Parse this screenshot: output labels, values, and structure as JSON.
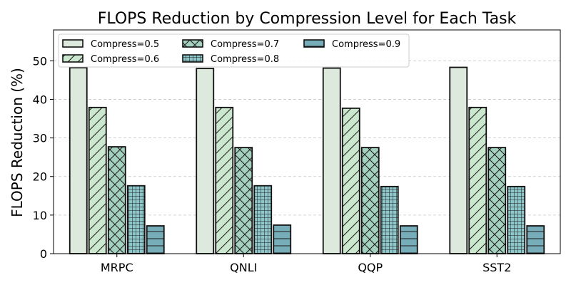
{
  "chart_data": {
    "type": "bar",
    "title": "FLOPS Reduction by Compression Level for Each Task",
    "xlabel": "",
    "ylabel": "FLOPS Reduction (%)",
    "categories": [
      "MRPC",
      "QNLI",
      "QQP",
      "SST2"
    ],
    "ylim": [
      0,
      58
    ],
    "yticks": [
      0,
      10,
      20,
      30,
      40,
      50
    ],
    "grid": "y-dashed",
    "legend_position": "top-left",
    "series": [
      {
        "name": "Compress=0.5",
        "values": [
          48.2,
          48.0,
          48.1,
          48.3
        ],
        "color": "#dde9dc",
        "hatch": "none"
      },
      {
        "name": "Compress=0.6",
        "values": [
          37.9,
          37.9,
          37.7,
          37.9
        ],
        "color": "#cbe8ce",
        "hatch": "diagonal"
      },
      {
        "name": "Compress=0.7",
        "values": [
          27.7,
          27.5,
          27.5,
          27.5
        ],
        "color": "#a3d0bf",
        "hatch": "cross-diagonal"
      },
      {
        "name": "Compress=0.8",
        "values": [
          17.6,
          17.6,
          17.4,
          17.4
        ],
        "color": "#8dc7ca",
        "hatch": "grid"
      },
      {
        "name": "Compress=0.9",
        "values": [
          7.2,
          7.4,
          7.2,
          7.2
        ],
        "color": "#77acb9",
        "hatch": "horizontal"
      }
    ]
  }
}
